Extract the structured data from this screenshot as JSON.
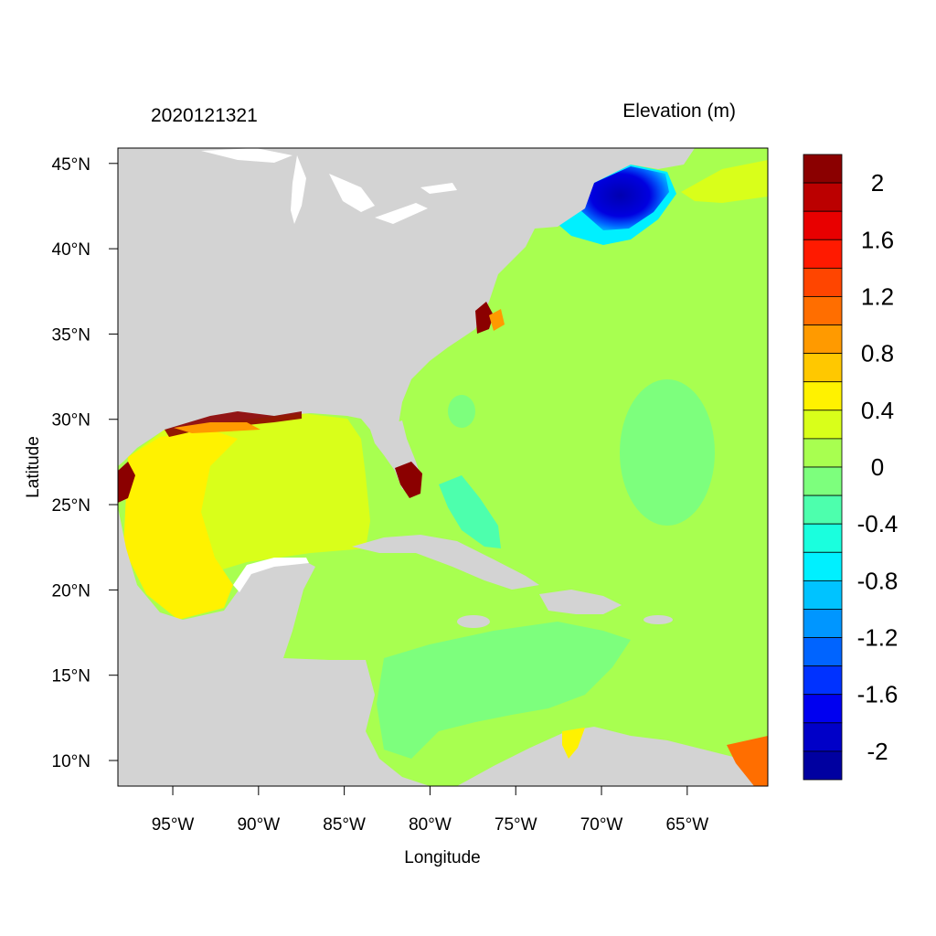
{
  "title_left": "2020121321",
  "title_right": "Elevation (m)",
  "x_axis_label": "Longitude",
  "y_axis_label": "Latitude",
  "lon_range": [
    -98.2,
    -60.3
  ],
  "lat_range": [
    8.5,
    45.9
  ],
  "lon_ticks": [
    {
      "value": -95,
      "label": "95°W"
    },
    {
      "value": -90,
      "label": "90°W"
    },
    {
      "value": -85,
      "label": "85°W"
    },
    {
      "value": -80,
      "label": "80°W"
    },
    {
      "value": -75,
      "label": "75°W"
    },
    {
      "value": -70,
      "label": "70°W"
    },
    {
      "value": -65,
      "label": "65°W"
    }
  ],
  "lat_ticks": [
    {
      "value": 45,
      "label": "45°N"
    },
    {
      "value": 40,
      "label": "40°N"
    },
    {
      "value": 35,
      "label": "35°N"
    },
    {
      "value": 30,
      "label": "30°N"
    },
    {
      "value": 25,
      "label": "25°N"
    },
    {
      "value": 20,
      "label": "20°N"
    },
    {
      "value": 15,
      "label": "15°N"
    },
    {
      "value": 10,
      "label": "10°N"
    }
  ],
  "colorbar": {
    "colors_top_to_bottom": [
      "#8b0000",
      "#bb0000",
      "#e80000",
      "#ff1a00",
      "#ff4500",
      "#ff6e00",
      "#ff9a00",
      "#ffc800",
      "#fff200",
      "#d9ff1a",
      "#a8ff50",
      "#7dff7d",
      "#4dffad",
      "#1affde",
      "#00f0ff",
      "#00c3ff",
      "#0096ff",
      "#0064ff",
      "#0032ff",
      "#0000f0",
      "#0000c8",
      "#0000a0"
    ],
    "labels": [
      "2",
      "1.6",
      "1.2",
      "0.8",
      "0.4",
      "0",
      "-0.4",
      "-0.8",
      "-1.2",
      "-1.6",
      "-2"
    ]
  },
  "colors": {
    "land": "#d3d3d3",
    "ocean_base": "#a8ff50"
  }
}
